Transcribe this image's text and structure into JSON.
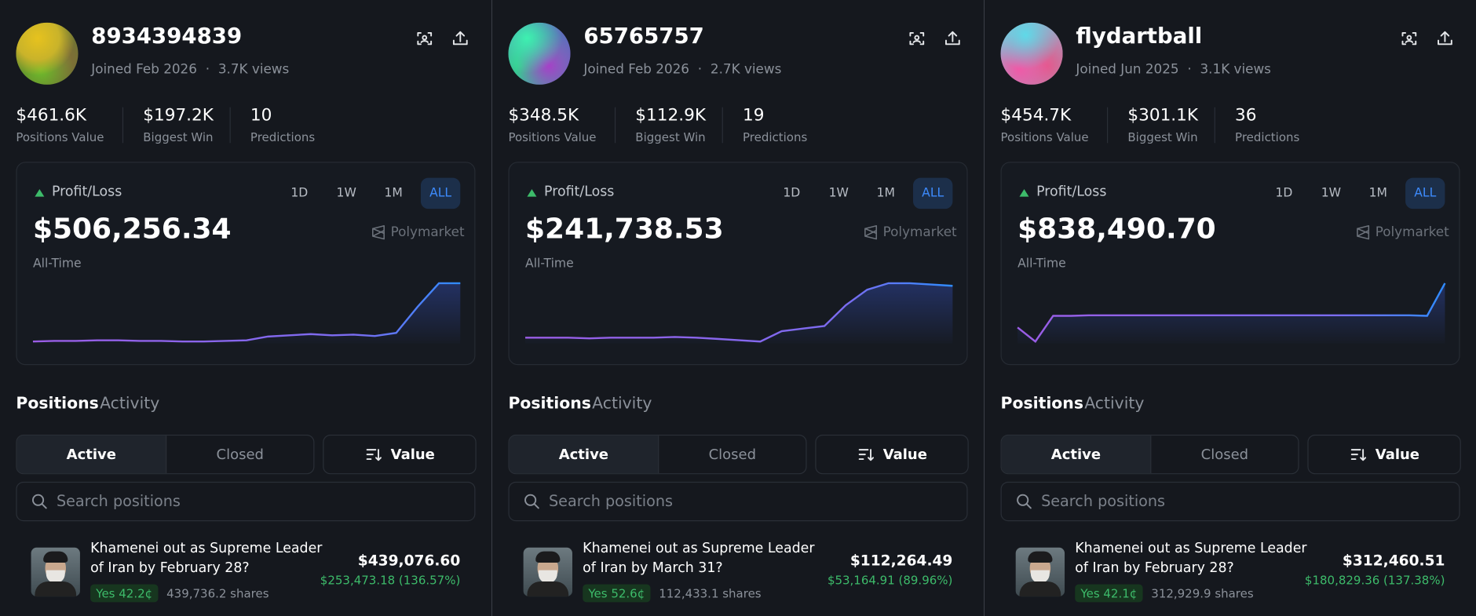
{
  "profiles": [
    {
      "name": "8934394839",
      "joined": "Joined Feb 2026",
      "views": "3.7K views",
      "stats": [
        {
          "value": "$461.6K",
          "label": "Positions Value"
        },
        {
          "value": "$197.2K",
          "label": "Biggest Win"
        },
        {
          "value": "10",
          "label": "Predictions"
        }
      ],
      "pnl": {
        "label": "Profit/Loss",
        "ranges": [
          "1D",
          "1W",
          "1M",
          "ALL"
        ],
        "value": "$506,256.34",
        "brand": "Polymarket",
        "period": "All-Time",
        "curve": [
          2,
          2.5,
          2.5,
          3,
          3,
          2.5,
          2.5,
          2,
          2,
          2.5,
          3,
          6,
          7,
          8,
          7,
          7.5,
          6.5,
          9,
          30,
          49,
          49
        ]
      },
      "tabs": [
        "Positions",
        "Activity"
      ],
      "filters": [
        "Active",
        "Closed"
      ],
      "sort": "Value",
      "search": "Search positions",
      "position": {
        "title": "Khamenei out as Supreme Leader of Iran by February 28?",
        "value": "$439,076.60",
        "pnl": "$253,473.18 (136.57%)",
        "outcome": "Yes 42.2¢",
        "shares": "439,736.2 shares"
      }
    },
    {
      "name": "65765757",
      "joined": "Joined Feb 2026",
      "views": "2.7K views",
      "stats": [
        {
          "value": "$348.5K",
          "label": "Positions Value"
        },
        {
          "value": "$112.9K",
          "label": "Biggest Win"
        },
        {
          "value": "19",
          "label": "Predictions"
        }
      ],
      "pnl": {
        "label": "Profit/Loss",
        "ranges": [
          "1D",
          "1W",
          "1M",
          "ALL"
        ],
        "value": "$241,738.53",
        "brand": "Polymarket",
        "period": "All-Time",
        "curve": [
          6,
          6,
          6,
          5.5,
          6,
          6,
          6,
          6.5,
          6,
          5,
          4,
          3,
          11,
          13,
          15,
          31,
          43,
          48,
          48,
          47,
          46
        ]
      },
      "tabs": [
        "Positions",
        "Activity"
      ],
      "filters": [
        "Active",
        "Closed"
      ],
      "sort": "Value",
      "search": "Search positions",
      "position": {
        "title": "Khamenei out as Supreme Leader of Iran by March 31?",
        "value": "$112,264.49",
        "pnl": "$53,164.91 (89.96%)",
        "outcome": "Yes 52.6¢",
        "shares": "112,433.1 shares"
      }
    },
    {
      "name": "flydartball",
      "joined": "Joined Jun 2025",
      "views": "3.1K views",
      "stats": [
        {
          "value": "$454.7K",
          "label": "Positions Value"
        },
        {
          "value": "$301.1K",
          "label": "Biggest Win"
        },
        {
          "value": "36",
          "label": "Predictions"
        }
      ],
      "pnl": {
        "label": "Profit/Loss",
        "ranges": [
          "1D",
          "1W",
          "1M",
          "ALL"
        ],
        "value": "$838,490.70",
        "brand": "Polymarket",
        "period": "All-Time",
        "curve": [
          14,
          2,
          24,
          24,
          24.5,
          24.5,
          24.5,
          24.5,
          24.5,
          24.5,
          24.5,
          24.5,
          24.5,
          24.5,
          24.5,
          24.5,
          24.5,
          24.5,
          24.5,
          24.5,
          24.5,
          24.5,
          24.5,
          24,
          52
        ]
      },
      "tabs": [
        "Positions",
        "Activity"
      ],
      "filters": [
        "Active",
        "Closed"
      ],
      "sort": "Value",
      "search": "Search positions",
      "position": {
        "title": "Khamenei out as Supreme Leader of Iran by February 28?",
        "value": "$312,460.51",
        "pnl": "$180,829.36 (137.38%)",
        "outcome": "Yes 42.1¢",
        "shares": "312,929.9 shares"
      }
    }
  ]
}
